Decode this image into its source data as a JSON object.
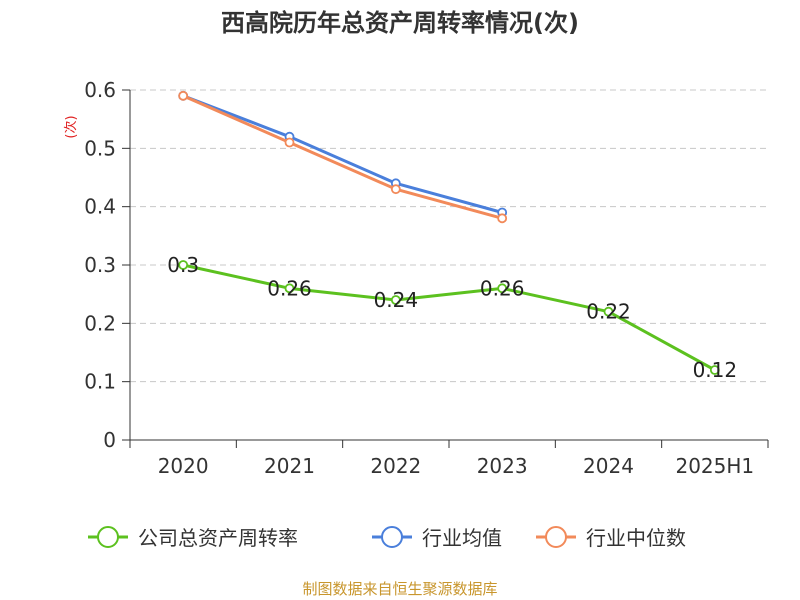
{
  "chart_data": {
    "type": "line",
    "title": "西高院历年总资产周转率情况(次)",
    "ylabel": "(次)",
    "categories": [
      "2020",
      "2021",
      "2022",
      "2023",
      "2024",
      "2025H1"
    ],
    "y_ticks": [
      "0",
      "0.1",
      "0.2",
      "0.3",
      "0.4",
      "0.5",
      "0.6"
    ],
    "ylim": [
      0,
      0.6
    ],
    "grid": true,
    "legend_position": "bottom",
    "series": [
      {
        "name": "公司总资产周转率",
        "color": "#5cc11f",
        "values": [
          0.3,
          0.26,
          0.24,
          0.26,
          0.22,
          0.12
        ],
        "data_labels": [
          "0.3",
          "0.26",
          "0.24",
          "0.26",
          "0.22",
          "0.12"
        ]
      },
      {
        "name": "行业均值",
        "color": "#4a7fdb",
        "values": [
          0.59,
          0.52,
          0.44,
          0.39,
          null,
          null
        ]
      },
      {
        "name": "行业中位数",
        "color": "#f28a5a",
        "values": [
          0.59,
          0.51,
          0.43,
          0.38,
          null,
          null
        ]
      }
    ]
  },
  "source_text": "制图数据来自恒生聚源数据库"
}
